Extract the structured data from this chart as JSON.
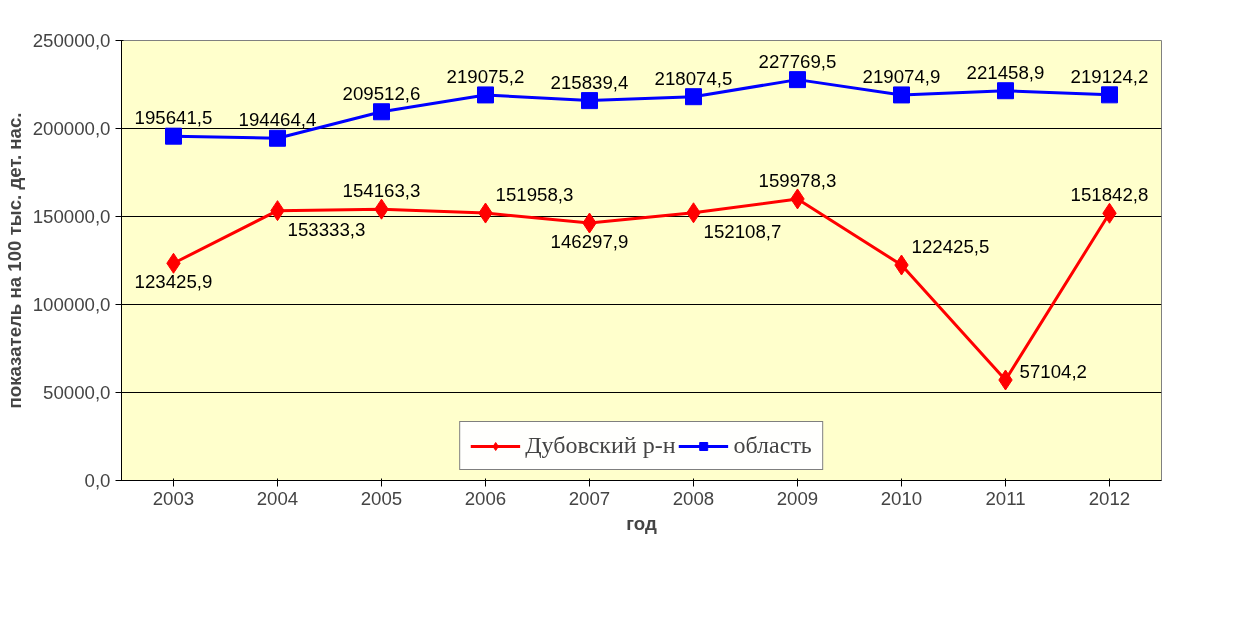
{
  "chart_data": {
    "type": "line",
    "xlabel": "год",
    "ylabel": "показатель на 100 тыс. дет. нас.",
    "categories": [
      "2003",
      "2004",
      "2005",
      "2006",
      "2007",
      "2008",
      "2009",
      "2010",
      "2011",
      "2012"
    ],
    "series": [
      {
        "name": "Дубовский р-н",
        "color": "#ff0000",
        "marker": "diamond",
        "values": [
          123425.9,
          153333.3,
          154163.3,
          151958.3,
          146297.9,
          152108.7,
          159978.3,
          122425.5,
          57104.2,
          151842.8
        ],
        "value_labels": [
          "123425,9",
          "153333,3",
          "154163,3",
          "151958,3",
          "146297,9",
          "152108,7",
          "159978,3",
          "122425,5",
          "57104,2",
          "151842,8"
        ]
      },
      {
        "name": "область",
        "color": "#0000ff",
        "marker": "square",
        "values": [
          195641.5,
          194464.4,
          209512.6,
          219075.2,
          215839.4,
          218074.5,
          227769.5,
          219074.9,
          221458.9,
          219124.2
        ],
        "value_labels": [
          "195641,5",
          "194464,4",
          "209512,6",
          "219075,2",
          "215839,4",
          "218074,5",
          "227769,5",
          "219074,9",
          "221458,9",
          "219124,2"
        ]
      }
    ],
    "ylim": [
      0,
      250000
    ],
    "yticks": [
      {
        "value": 0,
        "label": "0,0"
      },
      {
        "value": 50000,
        "label": "50000,0"
      },
      {
        "value": 100000,
        "label": "100000,0"
      },
      {
        "value": 150000,
        "label": "150000,0"
      },
      {
        "value": 200000,
        "label": "200000,0"
      },
      {
        "value": 250000,
        "label": "250000,0"
      }
    ],
    "grid": "y",
    "legend": "bottom",
    "line_style": "solid"
  }
}
